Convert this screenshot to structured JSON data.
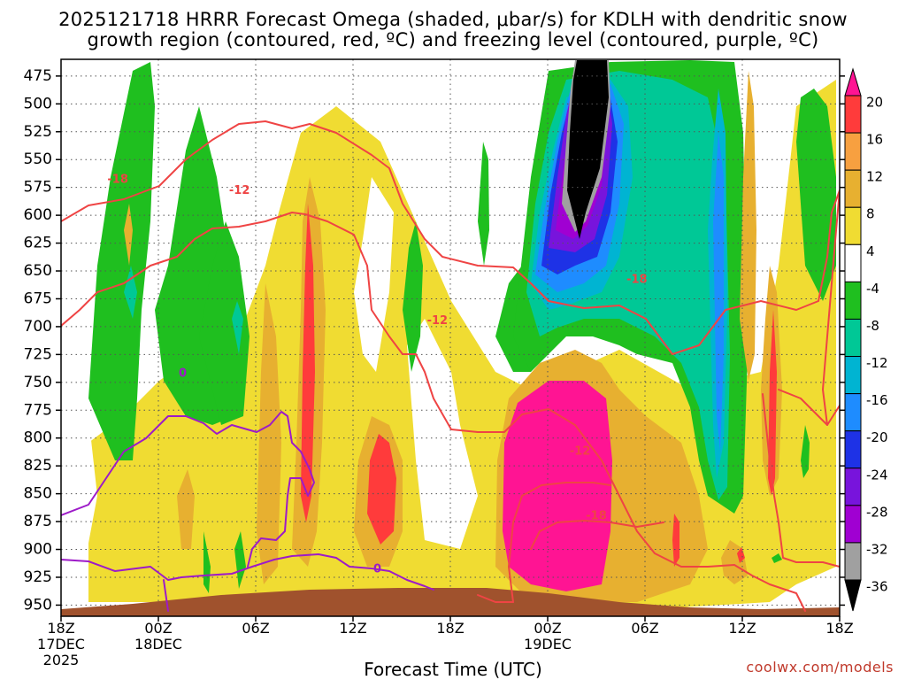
{
  "title": {
    "line1": "2025121718 HRRR Forecast Omega (shaded, μbar/s) for KDLH with dendritic snow",
    "line2": "growth region (contoured, red, ºC) and freezing level (contoured, purple, ºC)"
  },
  "credit": "coolwx.com/models",
  "chart_data": {
    "type": "heatmap",
    "title": "2025121718 HRRR Forecast Omega (shaded, μbar/s) for KDLH with dendritic snow growth region (contoured, red, ºC) and freezing level (contoured, purple, ºC)",
    "xlabel": "Forecast Time (UTC)",
    "ylabel": "",
    "x_ticks": [
      {
        "label": "18Z",
        "sub1": "17DEC",
        "sub2": "2025",
        "hour": 0
      },
      {
        "label": "00Z",
        "sub1": "18DEC",
        "sub2": "",
        "hour": 6
      },
      {
        "label": "06Z",
        "sub1": "",
        "sub2": "",
        "hour": 12
      },
      {
        "label": "12Z",
        "sub1": "",
        "sub2": "",
        "hour": 18
      },
      {
        "label": "18Z",
        "sub1": "",
        "sub2": "",
        "hour": 24
      },
      {
        "label": "00Z",
        "sub1": "19DEC",
        "sub2": "",
        "hour": 30
      },
      {
        "label": "06Z",
        "sub1": "",
        "sub2": "",
        "hour": 36
      },
      {
        "label": "12Z",
        "sub1": "",
        "sub2": "",
        "hour": 42
      },
      {
        "label": "18Z",
        "sub1": "",
        "sub2": "",
        "hour": 48
      }
    ],
    "x_range_hours": [
      0,
      48
    ],
    "y_range_hPa": [
      960,
      460
    ],
    "y_ticks": [
      475,
      500,
      525,
      550,
      575,
      600,
      625,
      650,
      675,
      700,
      725,
      750,
      775,
      800,
      825,
      850,
      875,
      900,
      925,
      950
    ],
    "colorbar": {
      "labels": [
        "20",
        "16",
        "12",
        "8",
        "4",
        "-4",
        "-8",
        "-12",
        "-16",
        "-20",
        "-24",
        "-28",
        "-32",
        "-36"
      ],
      "colors": [
        "#ff1493",
        "#ff3b3b",
        "#f7a040",
        "#e7b030",
        "#f0dc32",
        "#ffffff",
        "#1fbf1f",
        "#00c896",
        "#00b4d2",
        "#1e8cff",
        "#1e32e6",
        "#7814dc",
        "#a000d2",
        "#a0a0a0",
        "#000000"
      ]
    },
    "omega_features": [
      {
        "hour": 33.5,
        "pressure": 485,
        "value": -40
      },
      {
        "hour": 33.0,
        "pressure": 560,
        "value": -30
      },
      {
        "hour": 32.5,
        "pressure": 760,
        "value": 22
      },
      {
        "hour": 32.5,
        "pressure": 840,
        "value": 22
      },
      {
        "hour": 21.0,
        "pressure": 820,
        "value": 14
      },
      {
        "hour": 15.5,
        "pressure": 640,
        "value": 14
      },
      {
        "hour": 47.5,
        "pressure": 680,
        "value": 13
      },
      {
        "hour": 11.5,
        "pressure": 820,
        "value": 8
      },
      {
        "hour": 44.0,
        "pressure": 650,
        "value": -22
      }
    ],
    "contours": [
      {
        "label": "-18",
        "color": "#ef4444",
        "kind": "dendritic-snow-growth"
      },
      {
        "label": "-12",
        "color": "#ef4444",
        "kind": "dendritic-snow-growth"
      },
      {
        "label": "0",
        "color": "#9d1bc8",
        "kind": "freezing-level"
      }
    ],
    "contour_labels": [
      {
        "text": "-18",
        "hour": 3.5,
        "pressure": 568
      },
      {
        "text": "-12",
        "hour": 11.0,
        "pressure": 578
      },
      {
        "text": "-18",
        "hour": 35.5,
        "pressure": 658
      },
      {
        "text": "-12",
        "hour": 23.2,
        "pressure": 695
      },
      {
        "text": "-12",
        "hour": 32.0,
        "pressure": 812
      },
      {
        "text": "-18",
        "hour": 33.0,
        "pressure": 870
      },
      {
        "text": "0",
        "hour": 7.5,
        "pressure": 742
      },
      {
        "text": "0",
        "hour": 19.5,
        "pressure": 918
      }
    ],
    "grid": "dotted",
    "legend": "right"
  }
}
